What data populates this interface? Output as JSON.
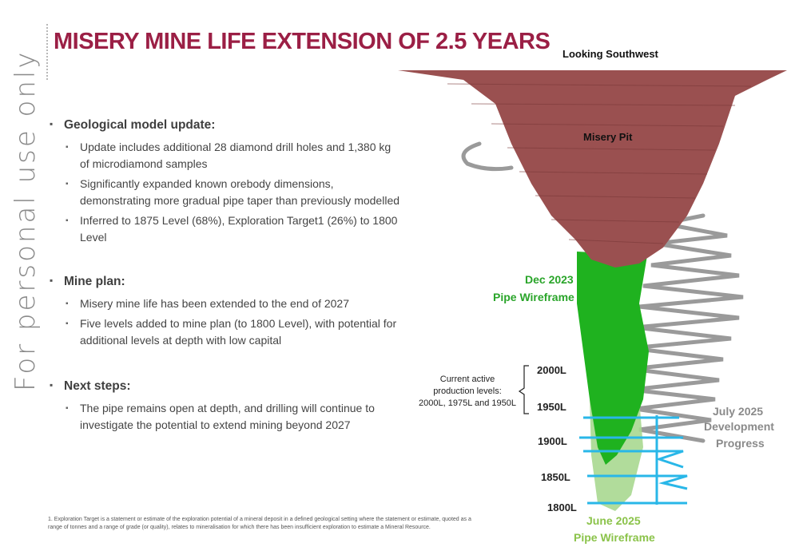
{
  "watermark": "For personal use only",
  "title": "MISERY MINE LIFE EXTENSION OF 2.5 YEARS",
  "sections": [
    {
      "heading": "Geological model update:",
      "items": [
        "Update includes  additional 28 diamond drill holes and 1,380 kg of microdiamond samples",
        "Significantly expanded known orebody dimensions, demonstrating more gradual pipe taper than previously modelled",
        "Inferred to 1875 Level (68%), Exploration Target1 (26%) to 1800 Level"
      ]
    },
    {
      "heading": "Mine plan:",
      "items": [
        "Misery mine life has been extended to the end of 2027",
        "Five levels added to mine plan (to 1800 Level), with potential for additional levels at depth with low capital"
      ]
    },
    {
      "heading": "Next steps:",
      "items": [
        "The pipe remains open at depth, and drilling will continue to investigate the potential to extend mining beyond 2027"
      ]
    }
  ],
  "footnote": "1. Exploration Target is a statement or estimate of the exploration potential of a mineral deposit in a defined geological setting where the statement or estimate, quoted as a range of tonnes and a range of grade (or quality), relates to mineralisation for which there has been insufficient exploration to estimate a Mineral Resource.",
  "figure": {
    "view_label": "Looking Southwest",
    "pit_label": "Misery Pit",
    "dec_label_1": "Dec 2023",
    "dec_label_2": "Pipe Wireframe",
    "june_label_1": "June 2025",
    "june_label_2": "Pipe Wireframe",
    "july_label_1": "July 2025",
    "july_label_2": "Development",
    "july_label_3": "Progress",
    "current_1": "Current active",
    "current_2": "production levels:",
    "current_3": "2000L, 1975L and 1950L",
    "levels": [
      "2000L",
      "1950L",
      "1900L",
      "1850L",
      "1800L"
    ],
    "colors": {
      "pit": "#9a5050",
      "pipe_dec": "#1fb21f",
      "pipe_june": "#a8d890",
      "development": "#29b7e8",
      "ramp": "#9a9a9a",
      "title": "#9b1f45",
      "green_text": "#2aa52a",
      "grey_text": "#8a8a8a"
    }
  }
}
